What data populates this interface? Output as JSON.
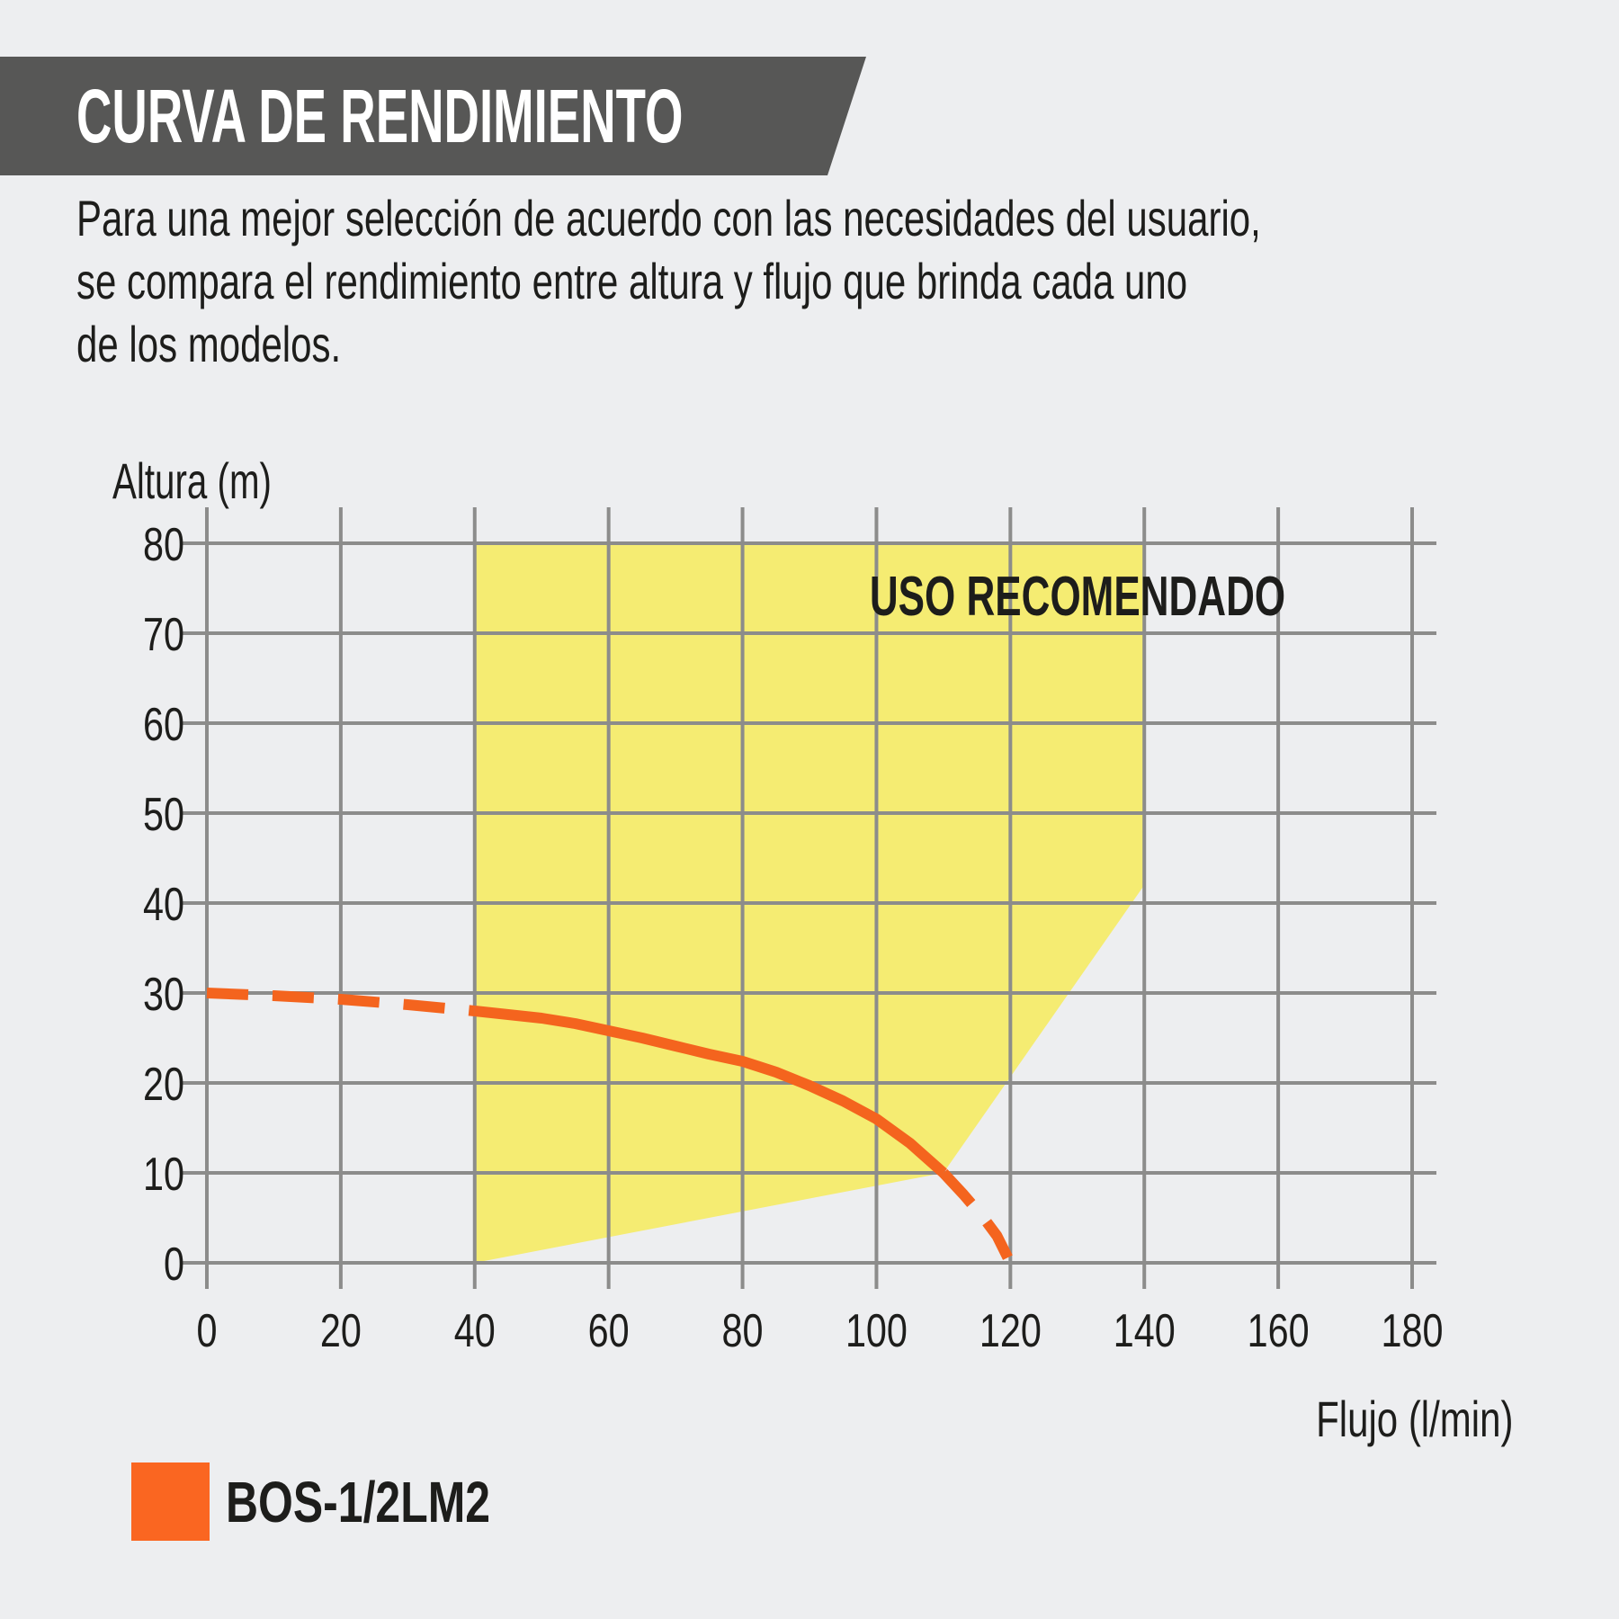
{
  "banner": {
    "title": "CURVA DE RENDIMIENTO",
    "background": "#575756",
    "text_color": "#FFFFFF"
  },
  "description": {
    "text": "Para una mejor selección de acuerdo con las necesidades del usuario,\nse compara el rendimiento entre altura y flujo que brinda cada uno\nde los modelos."
  },
  "chart_data": {
    "type": "line",
    "xlabel": "Flujo (l/min)",
    "ylabel": "Altura (m)",
    "xlim": [
      0,
      180
    ],
    "ylim": [
      0,
      80
    ],
    "x_ticks": [
      0,
      20,
      40,
      60,
      80,
      100,
      120,
      140,
      160,
      180
    ],
    "y_ticks": [
      0,
      10,
      20,
      30,
      40,
      50,
      60,
      70,
      80
    ],
    "grid": true,
    "grid_color": "#8C8C8B",
    "text_color": "#1D1D1B",
    "recommended_region": {
      "label": "USO RECOMENDADO",
      "color": "#F5EC72",
      "polygon": [
        [
          40,
          0
        ],
        [
          110,
          10
        ],
        [
          140,
          42
        ],
        [
          140,
          80
        ],
        [
          40,
          80
        ]
      ]
    },
    "series": [
      {
        "name": "BOS-1/2LM2",
        "color": "#F4641E",
        "segments": [
          {
            "style": "dashed",
            "points": [
              [
                0,
                30
              ],
              [
                10,
                29.7
              ],
              [
                20,
                29.3
              ],
              [
                30,
                28.7
              ],
              [
                40,
                28
              ]
            ]
          },
          {
            "style": "solid",
            "points": [
              [
                40,
                28
              ],
              [
                45,
                27.6
              ],
              [
                50,
                27.2
              ],
              [
                55,
                26.6
              ],
              [
                60,
                25.8
              ],
              [
                65,
                25.0
              ],
              [
                70,
                24.1
              ],
              [
                75,
                23.2
              ],
              [
                80,
                22.4
              ],
              [
                85,
                21.2
              ],
              [
                90,
                19.7
              ],
              [
                95,
                18.0
              ],
              [
                100,
                16.0
              ],
              [
                105,
                13.3
              ],
              [
                110,
                10
              ]
            ]
          },
          {
            "style": "dashed",
            "points": [
              [
                110,
                10
              ],
              [
                113,
                7.6
              ],
              [
                116,
                5.0
              ],
              [
                118,
                3.0
              ],
              [
                120,
                0
              ]
            ]
          }
        ]
      }
    ]
  },
  "legend": {
    "swatch_color": "#FA6621",
    "label": "BOS-1/2LM2"
  },
  "colors": {
    "page_background": "#EDEEF0"
  }
}
